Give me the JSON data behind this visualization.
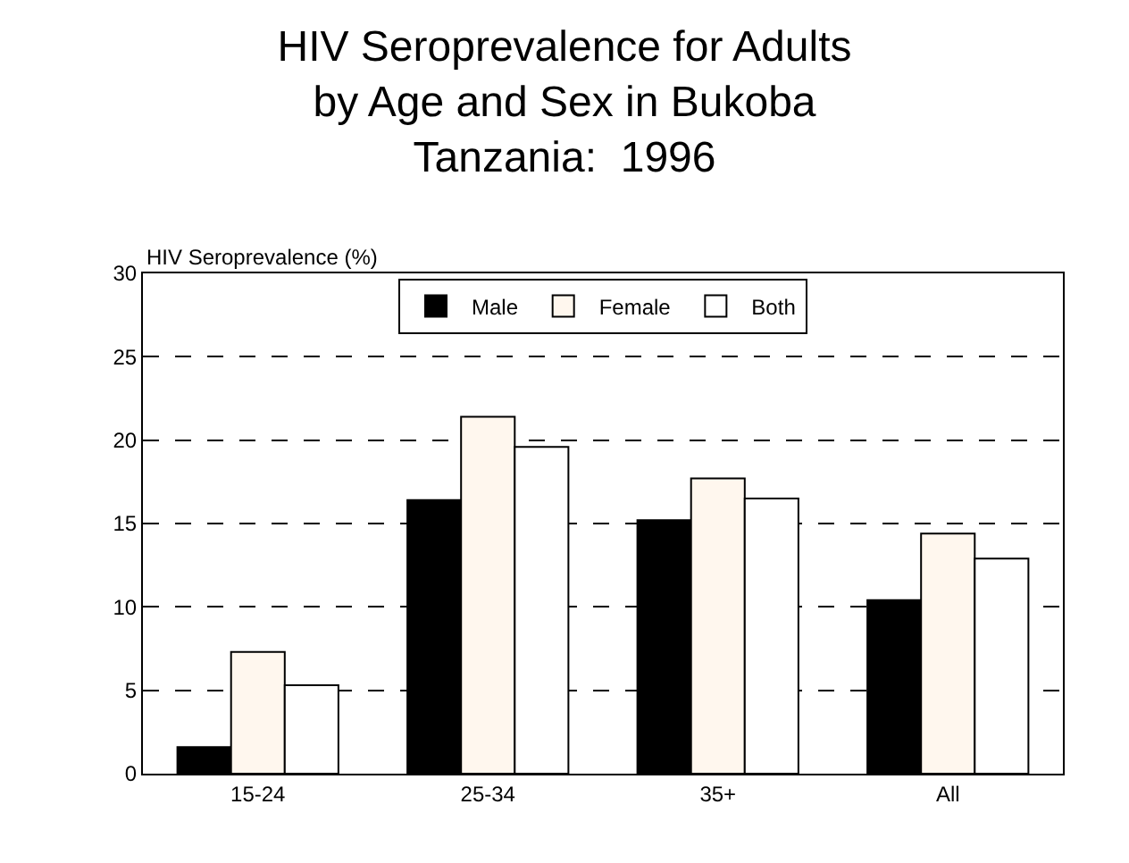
{
  "chart_data": {
    "type": "bar",
    "title": "HIV Seroprevalence for Adults\nby Age and Sex in Bukoba\nTanzania:  1996",
    "ylabel": "HIV Seroprevalence (%)",
    "categories": [
      "15-24",
      "25-34",
      "35+",
      "All"
    ],
    "series": [
      {
        "name": "Male",
        "color": "#000000",
        "values": [
          1.6,
          16.4,
          15.2,
          10.4
        ]
      },
      {
        "name": "Female",
        "color": "#fff7ee",
        "values": [
          7.3,
          21.4,
          17.7,
          14.4
        ]
      },
      {
        "name": "Both",
        "color": "#ffffff",
        "values": [
          5.3,
          19.6,
          16.5,
          12.9
        ]
      }
    ],
    "ylim": [
      0,
      30
    ],
    "yticks": [
      0,
      5,
      10,
      15,
      20,
      25,
      30
    ],
    "grid": "y",
    "legend": "top"
  }
}
